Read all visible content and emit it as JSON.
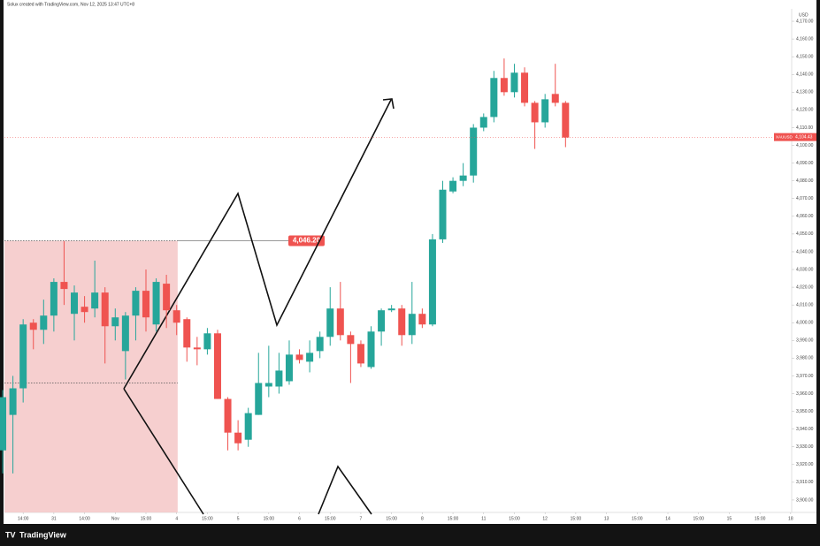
{
  "chart_data": {
    "type": "candlestick",
    "header": "Solux created with TradingView.com, Nov 12, 2025 13:47 UTC+8",
    "currency": "USD",
    "brand": "TradingView",
    "up_color": "#26a69a",
    "down_color": "#ef5350",
    "open": [
      3928,
      3948,
      3963,
      4000,
      3996,
      4004,
      4023,
      4005,
      4009,
      4008,
      4017,
      3998,
      3984,
      4004,
      4018,
      3999,
      4022,
      4007,
      4002,
      3986,
      3985,
      3994,
      3957,
      3938,
      3934,
      3948,
      3964,
      3964,
      3967,
      3982,
      3978,
      3984,
      3992,
      4008,
      3993,
      3988,
      3975,
      3995,
      4007,
      4008,
      3993,
      4005,
      3999,
      4047,
      4074,
      4080,
      4083,
      4110,
      4116,
      4138,
      4130,
      4141,
      4124,
      4113,
      4129,
      4124
    ],
    "high": [
      3962,
      3970,
      4002,
      4002,
      4013,
      4025,
      4046,
      4021,
      4015,
      4035,
      4020,
      4008,
      4006,
      4020,
      4030,
      4025,
      4027,
      4010,
      4003,
      3992,
      3997,
      3996,
      3958,
      3945,
      3952,
      3983,
      3987,
      3983,
      3990,
      3985,
      3990,
      3995,
      4020,
      4023,
      3995,
      3990,
      3998,
      4008,
      4010,
      4010,
      4023,
      4008,
      4050,
      4080,
      4082,
      4090,
      4112,
      4118,
      4142,
      4149,
      4146,
      4144,
      4125,
      4129,
      4146,
      4125
    ],
    "low": [
      3915,
      3915,
      3955,
      3985,
      3988,
      3995,
      4010,
      3990,
      4000,
      4003,
      3977,
      3990,
      3968,
      3990,
      3995,
      3995,
      3997,
      3993,
      3978,
      3976,
      3982,
      3957,
      3928,
      3928,
      3930,
      3948,
      3958,
      3960,
      3965,
      3977,
      3972,
      3980,
      3987,
      3990,
      3966,
      3975,
      3974,
      3987,
      4006,
      3987,
      3988,
      3997,
      3998,
      4045,
      4073,
      4077,
      4079,
      4108,
      4113,
      4128,
      4127,
      4122,
      4098,
      4110,
      4122,
      4099
    ],
    "close": [
      3958,
      3963,
      3999,
      3996,
      4004,
      4023,
      4019,
      4017,
      4006,
      4017,
      3998,
      4003,
      4004,
      4018,
      4003,
      4023,
      4007,
      4000,
      3986,
      3985,
      3994,
      3957,
      3938,
      3932,
      3949,
      3966,
      3966,
      3973,
      3982,
      3979,
      3983,
      3992,
      4008,
      3993,
      3988,
      3977,
      3995,
      4007,
      4008,
      3993,
      4005,
      3999,
      4047,
      4075,
      4080,
      4083,
      4110,
      4116,
      4138,
      4130,
      4141,
      4124,
      4113,
      4126,
      4124,
      4104.43
    ],
    "ylim": [
      3893,
      4177
    ],
    "yticks": [
      {
        "value": 3900,
        "label": "3,900.00"
      },
      {
        "value": 3910,
        "label": "3,910.00"
      },
      {
        "value": 3920,
        "label": "3,920.00"
      },
      {
        "value": 3930,
        "label": "3,930.00"
      },
      {
        "value": 3940,
        "label": "3,940.00"
      },
      {
        "value": 3950,
        "label": "3,950.00"
      },
      {
        "value": 3960,
        "label": "3,960.00"
      },
      {
        "value": 3970,
        "label": "3,970.00"
      },
      {
        "value": 3980,
        "label": "3,980.00"
      },
      {
        "value": 3990,
        "label": "3,990.00"
      },
      {
        "value": 4000,
        "label": "4,000.00"
      },
      {
        "value": 4010,
        "label": "4,010.00"
      },
      {
        "value": 4020,
        "label": "4,020.00"
      },
      {
        "value": 4030,
        "label": "4,030.00"
      },
      {
        "value": 4040,
        "label": "4,040.00"
      },
      {
        "value": 4050,
        "label": "4,050.00"
      },
      {
        "value": 4060,
        "label": "4,060.00"
      },
      {
        "value": 4070,
        "label": "4,070.00"
      },
      {
        "value": 4080,
        "label": "4,080.00"
      },
      {
        "value": 4090,
        "label": "4,090.00"
      },
      {
        "value": 4100,
        "label": "4,100.00"
      },
      {
        "value": 4110,
        "label": "4,110.00"
      },
      {
        "value": 4120,
        "label": "4,120.00"
      },
      {
        "value": 4130,
        "label": "4,130.00"
      },
      {
        "value": 4140,
        "label": "4,140.00"
      },
      {
        "value": 4150,
        "label": "4,150.00"
      },
      {
        "value": 4160,
        "label": "4,160.00"
      },
      {
        "value": 4170,
        "label": "4,170.00"
      }
    ],
    "xlim": [
      0.17,
      77.1
    ],
    "xticks": [
      {
        "value": 2,
        "label": "14:00"
      },
      {
        "value": 5,
        "label": "31"
      },
      {
        "value": 8,
        "label": "14:00"
      },
      {
        "value": 11,
        "label": "Nov"
      },
      {
        "value": 14,
        "label": "15:00"
      },
      {
        "value": 17,
        "label": "4"
      },
      {
        "value": 20,
        "label": "15:00"
      },
      {
        "value": 23,
        "label": "5"
      },
      {
        "value": 26,
        "label": "15:00"
      },
      {
        "value": 29,
        "label": "6"
      },
      {
        "value": 32,
        "label": "15:00"
      },
      {
        "value": 35,
        "label": "7"
      },
      {
        "value": 38,
        "label": "15:00"
      },
      {
        "value": 41,
        "label": "8"
      },
      {
        "value": 44,
        "label": "15:00"
      },
      {
        "value": 47,
        "label": "11"
      },
      {
        "value": 50,
        "label": "15:00"
      },
      {
        "value": 53,
        "label": "12"
      },
      {
        "value": 56,
        "label": "15:00"
      },
      {
        "value": 59,
        "label": "13"
      },
      {
        "value": 62,
        "label": "15:00"
      },
      {
        "value": 65,
        "label": "14"
      },
      {
        "value": 68,
        "label": "15:00"
      },
      {
        "value": 71,
        "label": "15"
      },
      {
        "value": 74,
        "label": "15:00"
      },
      {
        "value": 77,
        "label": "18"
      }
    ],
    "range_box": {
      "high": 4046.2,
      "low": 3966,
      "label": "4,046.20",
      "color": "#f4c7c7"
    },
    "last_price": {
      "symbol": "XAUUSD",
      "value": 4104.43,
      "label": "4,104.43",
      "color": "#ef5350"
    }
  }
}
